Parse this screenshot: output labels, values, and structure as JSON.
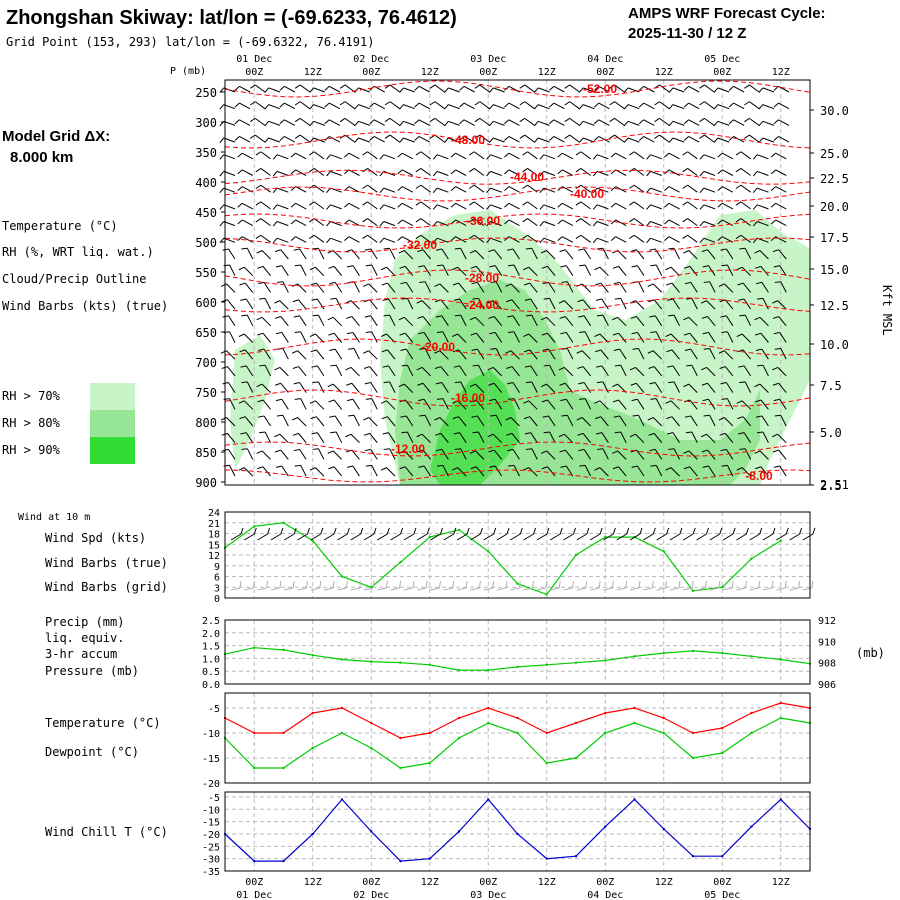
{
  "header": {
    "title": "Zhongshan Skiway:  lat/lon = (-69.6233, 76.4612)",
    "subtitle": "Grid Point (153, 293) lat/lon = (-69.6322, 76.4191)",
    "cycle_label": "AMPS WRF Forecast Cycle:",
    "cycle_value": "2025-11-30 / 12  Z"
  },
  "model_grid": {
    "label": "Model Grid ΔX:",
    "value": "8.000 km"
  },
  "time_axis": {
    "hours": [
      "00Z",
      "12Z",
      "00Z",
      "12Z",
      "00Z",
      "12Z",
      "00Z",
      "12Z",
      "00Z",
      "12Z"
    ],
    "dates": [
      "01 Dec",
      "02 Dec",
      "03 Dec",
      "04 Dec",
      "05 Dec"
    ]
  },
  "colors": {
    "temp": "#ff0000",
    "rh70": "#c8f5c8",
    "rh80": "#96e696",
    "rh90": "#32dc32",
    "wind": "#00cc00",
    "precip": "#6a1b9a",
    "chill": "#0000cc"
  },
  "upper_panel": {
    "pressure_label": "P (mb)",
    "height_label": "Kft MSL",
    "pressure_ticks": [
      "250",
      "300",
      "350",
      "400",
      "450",
      "500",
      "550",
      "600",
      "650",
      "700",
      "750",
      "800",
      "850",
      "900"
    ],
    "height_ticks": [
      "30.0",
      "25.0",
      "22.5",
      "20.0",
      "17.5",
      "15.0",
      "12.5",
      "10.0",
      "7.5",
      "5.0",
      "2.5",
      "2.51"
    ],
    "legend": {
      "temperature": "Temperature (°C)",
      "rh": "RH (%, WRT liq. wat.)",
      "cloud": "Cloud/Precip Outline",
      "wind": "Wind Barbs (kts) (true)",
      "rh70": "RH > 70%",
      "rh80": "RH > 80%",
      "rh90": "RH > 90%"
    },
    "temp_labels": [
      "-52.00",
      "-48.00",
      "-44.00",
      "-40.00",
      "-36.00",
      "-32.00",
      "-28.00",
      "-24.00",
      "-20.00",
      "-16.00",
      "-12.00",
      "-8.00"
    ]
  },
  "wind_panel": {
    "header": "Wind at 10 m",
    "speed_label": "Wind Spd (kts)",
    "barb_true_label": "Wind Barbs (true)",
    "barb_grid_label": "Wind Barbs (grid)",
    "y_ticks": [
      "24",
      "21",
      "18",
      "15",
      "12",
      "9",
      "6",
      "3",
      "0"
    ]
  },
  "precip_panel": {
    "precip_label": "Precip (mm)",
    "liq_label": "liq. equiv.",
    "accum_label": "3-hr accum",
    "pressure_label": "Pressure (mb)",
    "left_ticks": [
      "2.5",
      "2.0",
      "1.5",
      "1.0",
      "0.5",
      "0.0"
    ],
    "right_ticks": [
      "912",
      "910",
      "908",
      "906"
    ],
    "unit": "(mb)"
  },
  "temp_panel": {
    "temp_label": "Temperature (°C)",
    "dew_label": "Dewpoint (°C)",
    "y_ticks": [
      "-5",
      "-10",
      "-15",
      "-20"
    ]
  },
  "chill_panel": {
    "label": "Wind Chill T (°C)",
    "y_ticks": [
      "-5",
      "-10",
      "-15",
      "-20",
      "-25",
      "-30",
      "-35"
    ]
  },
  "chart_data": [
    {
      "type": "line",
      "title": "Wind Spd (kts)",
      "x_hours": [
        0,
        6,
        12,
        18,
        24,
        30,
        36,
        42,
        48,
        54,
        60,
        66,
        72,
        78,
        84,
        90,
        96,
        102,
        108,
        114
      ],
      "values": [
        14,
        20,
        21,
        16,
        6,
        3,
        10,
        17,
        19,
        13,
        4,
        1,
        12,
        17,
        17,
        13,
        2,
        3,
        11,
        16
      ],
      "ylim": [
        0,
        24
      ]
    },
    {
      "type": "line",
      "title": "Pressure (mb)",
      "x_hours": [
        0,
        6,
        12,
        18,
        24,
        30,
        36,
        42,
        48,
        54,
        60,
        66,
        72,
        78,
        84,
        90,
        96,
        102,
        108,
        114,
        120
      ],
      "values": [
        908.8,
        909.4,
        909.2,
        908.7,
        908.3,
        908.1,
        908.0,
        907.8,
        907.3,
        907.3,
        907.6,
        907.8,
        908.0,
        908.2,
        908.6,
        908.9,
        909.1,
        908.9,
        908.6,
        908.3,
        907.9
      ],
      "ylim": [
        906,
        912
      ]
    },
    {
      "type": "line",
      "title": "Temperature / Dewpoint (°C)",
      "x_hours": [
        0,
        6,
        12,
        18,
        24,
        30,
        36,
        42,
        48,
        54,
        60,
        66,
        72,
        78,
        84,
        90,
        96,
        102,
        108,
        114,
        120
      ],
      "series": [
        {
          "name": "Temperature",
          "values": [
            -7,
            -10,
            -10,
            -6,
            -5,
            -8,
            -11,
            -10,
            -7,
            -5,
            -7,
            -10,
            -8,
            -6,
            -5,
            -7,
            -10,
            -9,
            -6,
            -4,
            -5
          ]
        },
        {
          "name": "Dewpoint",
          "values": [
            -11,
            -17,
            -17,
            -13,
            -10,
            -13,
            -17,
            -16,
            -11,
            -8,
            -10,
            -16,
            -15,
            -10,
            -8,
            -10,
            -15,
            -14,
            -10,
            -7,
            -8
          ]
        }
      ],
      "ylim": [
        -20,
        -2
      ]
    },
    {
      "type": "line",
      "title": "Wind Chill T (°C)",
      "x_hours": [
        0,
        6,
        12,
        18,
        24,
        30,
        36,
        42,
        48,
        54,
        60,
        66,
        72,
        78,
        84,
        90,
        96,
        102,
        108,
        114,
        120
      ],
      "values": [
        -20,
        -31,
        -31,
        -20,
        -6,
        -19,
        -31,
        -30,
        -19,
        -6,
        -20,
        -30,
        -29,
        -17,
        -6,
        -18,
        -29,
        -29,
        -17,
        -6,
        -18
      ],
      "ylim": [
        -35,
        -3
      ]
    }
  ]
}
